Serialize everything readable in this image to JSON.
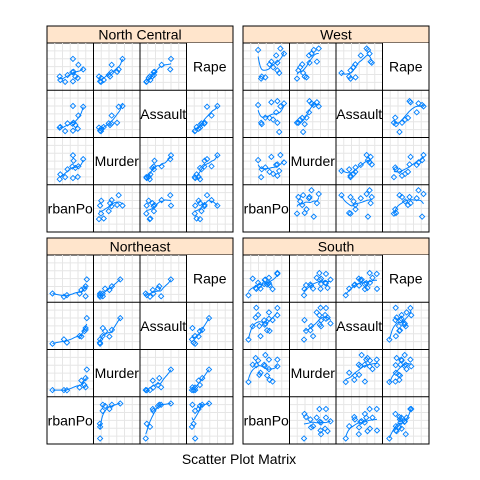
{
  "chart_data": {
    "type": "scatter",
    "subtype": "scatter-plot-matrix",
    "xlabel": "Scatter Plot Matrix",
    "variables": [
      "UrbanPop",
      "Murder",
      "Assault",
      "Rape"
    ],
    "diagonal_labels": [
      "rbanPo",
      "Murder",
      "Assault",
      "Rape"
    ],
    "grid": true,
    "smoother": "loess",
    "colors": {
      "points": "#0080ff",
      "strip": "#ffe5cc",
      "grid": "#e6e6e6",
      "border": "#000000"
    },
    "panels": [
      {
        "name": "North Central",
        "data": {
          "UrbanPop": [
            83,
            65,
            66,
            57,
            66,
            74,
            44,
            75,
            70,
            45,
            67,
            53
          ],
          "Murder": [
            10.4,
            7.2,
            2.2,
            6.0,
            12.1,
            2.7,
            1.7,
            7.3,
            6.6,
            3.8,
            9.7,
            2.6
          ],
          "Assault": [
            249,
            113,
            56,
            115,
            255,
            72,
            81,
            178,
            102,
            86,
            120,
            53
          ],
          "Rape": [
            24.0,
            21.0,
            11.3,
            18.0,
            35.1,
            14.9,
            16.5,
            28.8,
            16.5,
            12.8,
            21.4,
            10.8
          ]
        }
      },
      {
        "name": "West",
        "data": {
          "UrbanPop": [
            48,
            80,
            91,
            78,
            83,
            53,
            54,
            85,
            70,
            67,
            80,
            73,
            60
          ],
          "Murder": [
            10.0,
            8.1,
            9.0,
            7.9,
            5.3,
            2.6,
            6.0,
            12.2,
            11.4,
            4.9,
            3.2,
            4.0,
            6.8
          ],
          "Assault": [
            263,
            294,
            276,
            204,
            46,
            120,
            109,
            252,
            285,
            159,
            120,
            145,
            161
          ],
          "Rape": [
            44.5,
            31.0,
            40.6,
            38.7,
            20.2,
            14.2,
            16.4,
            46.0,
            32.1,
            29.3,
            22.9,
            26.2,
            15.6
          ]
        }
      },
      {
        "name": "Northeast",
        "data": {
          "UrbanPop": [
            77,
            51,
            85,
            56,
            87,
            89,
            80,
            87,
            32
          ],
          "Murder": [
            3.3,
            2.2,
            4.4,
            2.1,
            7.4,
            11.1,
            6.3,
            3.4,
            2.2
          ],
          "Assault": [
            110,
            83,
            149,
            57,
            159,
            254,
            106,
            174,
            48
          ],
          "Rape": [
            11.1,
            7.8,
            16.3,
            9.5,
            18.8,
            26.1,
            14.9,
            8.3,
            11.2
          ]
        }
      },
      {
        "name": "South",
        "data": {
          "UrbanPop": [
            58,
            50,
            72,
            80,
            60,
            52,
            66,
            66,
            67,
            44,
            45,
            48,
            39,
            59,
            80,
            63,
            32
          ],
          "Murder": [
            13.2,
            8.8,
            5.9,
            15.4,
            17.4,
            9.7,
            15.4,
            11.3,
            6.6,
            16.1,
            13.0,
            15.0,
            13.2,
            12.7,
            12.5,
            8.5,
            5.7
          ],
          "Assault": [
            236,
            190,
            238,
            335,
            211,
            109,
            249,
            300,
            151,
            259,
            337,
            279,
            188,
            201,
            277,
            156,
            81
          ],
          "Rape": [
            21.2,
            19.5,
            15.8,
            31.9,
            25.8,
            16.3,
            22.2,
            27.8,
            20.0,
            17.1,
            16.1,
            22.5,
            26.9,
            25.5,
            32.8,
            20.7,
            9.3
          ]
        }
      }
    ]
  }
}
